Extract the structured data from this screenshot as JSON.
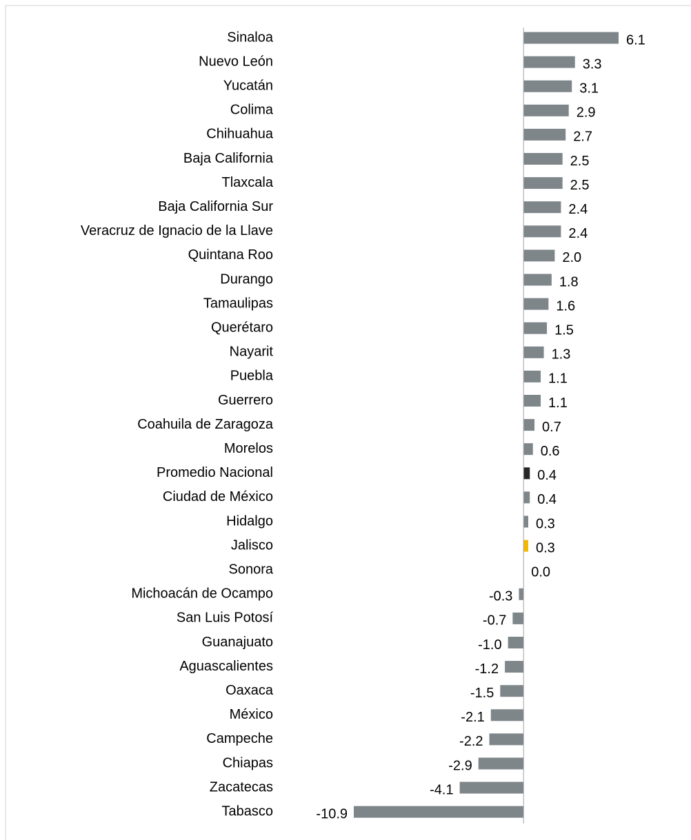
{
  "chart_data": {
    "type": "barh",
    "categories": [
      "Sinaloa",
      "Nuevo León",
      "Yucatán",
      "Colima",
      "Chihuahua",
      "Baja California",
      "Tlaxcala",
      "Baja California Sur",
      "Veracruz de Ignacio de la Llave",
      "Quintana Roo",
      "Durango",
      "Tamaulipas",
      "Querétaro",
      "Nayarit",
      "Puebla",
      "Guerrero",
      "Coahuila de Zaragoza",
      "Morelos",
      "Promedio Nacional",
      "Ciudad de México",
      "Hidalgo",
      "Jalisco",
      "Sonora",
      "Michoacán de Ocampo",
      "San Luis Potosí",
      "Guanajuato",
      "Aguascalientes",
      "Oaxaca",
      "México",
      "Campeche",
      "Chiapas",
      "Zacatecas",
      "Tabasco"
    ],
    "values": [
      6.1,
      3.3,
      3.1,
      2.9,
      2.7,
      2.5,
      2.5,
      2.4,
      2.4,
      2.0,
      1.8,
      1.6,
      1.5,
      1.3,
      1.1,
      1.1,
      0.7,
      0.6,
      0.4,
      0.4,
      0.3,
      0.3,
      0.0,
      -0.3,
      -0.7,
      -1.0,
      -1.2,
      -1.5,
      -2.1,
      -2.2,
      -2.9,
      -4.1,
      -10.9
    ],
    "value_labels": [
      "6.1",
      "3.3",
      "3.1",
      "2.9",
      "2.7",
      "2.5",
      "2.5",
      "2.4",
      "2.4",
      "2.0",
      "1.8",
      "1.6",
      "1.5",
      "1.3",
      "1.1",
      "1.1",
      "0.7",
      "0.6",
      "0.4",
      "0.4",
      "0.3",
      "0.3",
      "0.0",
      "-0.3",
      "-0.7",
      "-1.0",
      "-1.2",
      "-1.5",
      "-2.1",
      "-2.2",
      "-2.9",
      "-4.1",
      "-10.9"
    ],
    "colors": [
      "#7f868a",
      "#7f868a",
      "#7f868a",
      "#7f868a",
      "#7f868a",
      "#7f868a",
      "#7f868a",
      "#7f868a",
      "#7f868a",
      "#7f868a",
      "#7f868a",
      "#7f868a",
      "#7f868a",
      "#7f868a",
      "#7f868a",
      "#7f868a",
      "#7f868a",
      "#7f868a",
      "#262626",
      "#7f868a",
      "#7f868a",
      "#f5b800",
      "#7f868a",
      "#7f868a",
      "#7f868a",
      "#7f868a",
      "#7f868a",
      "#7f868a",
      "#7f868a",
      "#7f868a",
      "#7f868a",
      "#7f868a",
      "#7f868a"
    ]
  }
}
